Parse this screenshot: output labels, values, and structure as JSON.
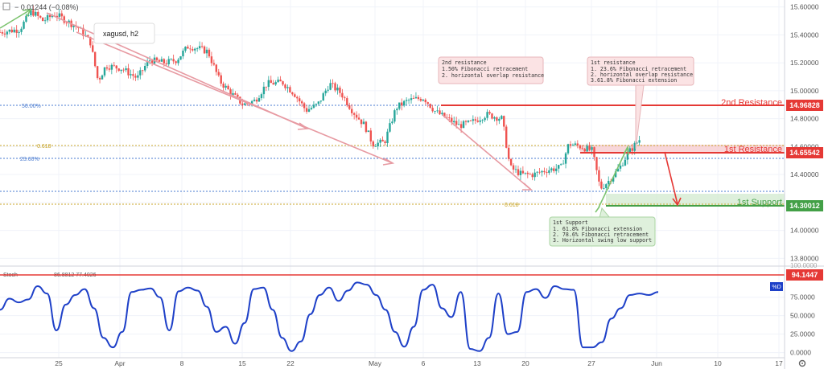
{
  "header": {
    "change_readout": "− 0.01244 (−0.08%)",
    "symbol_label": "xagusd, h2"
  },
  "colors": {
    "up_candle": "#26a69a",
    "down_candle": "#ef5350",
    "resistance_line": "#e53935",
    "support_line": "#43a047",
    "stoch_line": "#1e40c8",
    "fib_50": "#4a7bd0",
    "fib_618": "#c8a52a",
    "arrow_pink": "#e79aa2",
    "arrow_green": "#7cc36e"
  },
  "levels": {
    "second_resistance": {
      "label": "2nd Resistance",
      "price": "14.96828"
    },
    "first_resistance": {
      "label": "1st Resistance",
      "price": "14.65542"
    },
    "first_support": {
      "label": "1st Support",
      "price": "14.30012"
    }
  },
  "fib_labels": {
    "fifty": "50.00%",
    "six_eighteen_a": "0.618",
    "twenty_three": "23.60%",
    "six_eighteen_b": "0.618"
  },
  "notes": {
    "second_resistance": [
      "2nd resistance",
      "1.50% Fibonacci retracement",
      "2. horizontal overlap resistance"
    ],
    "first_resistance": [
      "1st resistance",
      "1. 23.6% Fibonacci retracement",
      "2. horizontal overlap resistance",
      "3.61.8% Fibonacci extension"
    ],
    "first_support": [
      "1st Support",
      "1. 61.8% Fibonacci extension",
      "2. 78.6% Fibonacci retracement",
      "3. Horizontal swing low support"
    ]
  },
  "stoch": {
    "header": "Stoch",
    "values": "86.8812  77.4026",
    "level_price": "94.1447",
    "d_badge": "%D"
  },
  "chart_data": {
    "type": "candlestick",
    "title": "xagusd, h2",
    "price_axis": {
      "ylim": [
        13.75,
        15.65
      ],
      "ticks": [
        "15.60000",
        "15.40000",
        "15.20000",
        "15.00000",
        "14.80000",
        "14.60000",
        "14.40000",
        "14.20000",
        "14.00000",
        "13.80000"
      ]
    },
    "stoch_axis": {
      "ylim": [
        -7,
        115
      ],
      "ticks": [
        "75.0000",
        "50.0000",
        "25.0000",
        "0.0000"
      ],
      "top_label": "100.0000"
    },
    "x_ticks": [
      "25",
      "Apr",
      "8",
      "15",
      "22",
      "May",
      "6",
      "13",
      "20",
      "27",
      "Jun",
      "10",
      "17"
    ],
    "price_path": [
      [
        0,
        15.42
      ],
      [
        0.025,
        15.44
      ],
      [
        0.04,
        15.57
      ],
      [
        0.055,
        15.5
      ],
      [
        0.07,
        15.55
      ],
      [
        0.085,
        15.5
      ],
      [
        0.1,
        15.45
      ],
      [
        0.115,
        15.35
      ],
      [
        0.125,
        15.07
      ],
      [
        0.135,
        15.18
      ],
      [
        0.155,
        15.16
      ],
      [
        0.175,
        15.09
      ],
      [
        0.19,
        15.22
      ],
      [
        0.21,
        15.2
      ],
      [
        0.225,
        15.22
      ],
      [
        0.24,
        15.32
      ],
      [
        0.255,
        15.3
      ],
      [
        0.265,
        15.28
      ],
      [
        0.28,
        15.07
      ],
      [
        0.295,
        14.98
      ],
      [
        0.31,
        14.9
      ],
      [
        0.325,
        14.93
      ],
      [
        0.34,
        15.05
      ],
      [
        0.36,
        15.06
      ],
      [
        0.375,
        14.98
      ],
      [
        0.39,
        14.86
      ],
      [
        0.405,
        14.9
      ],
      [
        0.42,
        15.05
      ],
      [
        0.435,
        14.98
      ],
      [
        0.45,
        14.85
      ],
      [
        0.465,
        14.75
      ],
      [
        0.475,
        14.62
      ],
      [
        0.49,
        14.63
      ],
      [
        0.505,
        14.88
      ],
      [
        0.52,
        14.93
      ],
      [
        0.54,
        14.95
      ],
      [
        0.555,
        14.85
      ],
      [
        0.57,
        14.8
      ],
      [
        0.585,
        14.75
      ],
      [
        0.6,
        14.77
      ],
      [
        0.62,
        14.83
      ],
      [
        0.64,
        14.8
      ],
      [
        0.65,
        14.45
      ],
      [
        0.665,
        14.4
      ],
      [
        0.68,
        14.4
      ],
      [
        0.695,
        14.43
      ],
      [
        0.715,
        14.45
      ],
      [
        0.725,
        14.62
      ],
      [
        0.74,
        14.6
      ],
      [
        0.755,
        14.57
      ],
      [
        0.765,
        14.3
      ],
      [
        0.775,
        14.35
      ],
      [
        0.79,
        14.45
      ],
      [
        0.8,
        14.55
      ],
      [
        0.815,
        14.65
      ]
    ],
    "stoch_values": [
      58,
      73,
      68,
      72,
      90,
      80,
      30,
      65,
      78,
      86,
      60,
      20,
      7,
      28,
      82,
      85,
      87,
      75,
      30,
      83,
      88,
      84,
      62,
      28,
      35,
      12,
      40,
      86,
      88,
      58,
      20,
      2,
      15,
      52,
      78,
      88,
      70,
      84,
      95,
      92,
      78,
      58,
      28,
      8,
      35,
      85,
      92,
      60,
      48,
      82,
      5,
      2,
      20,
      80,
      25,
      28,
      82,
      86,
      74,
      90,
      86,
      85,
      7,
      7,
      14,
      46,
      60,
      78,
      80,
      78,
      82
    ]
  }
}
